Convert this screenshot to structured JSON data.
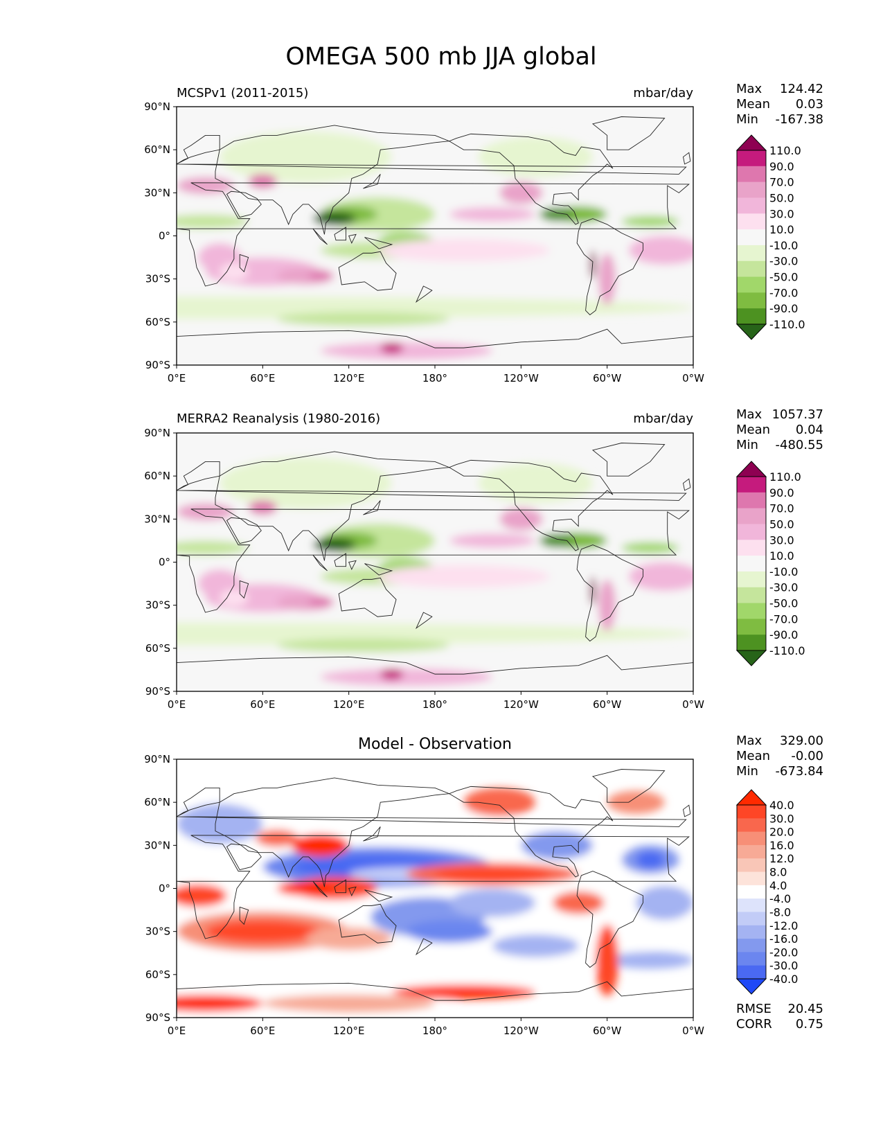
{
  "figure": {
    "title": "OMEGA 500 mb JJA global"
  },
  "chart_data": [
    {
      "type": "heatmap",
      "title_left": "MCSPv1 (2011-2015)",
      "title_right": "mbar/day",
      "stats": {
        "max_label": "Max",
        "max_value": "124.42",
        "mean_label": "Mean",
        "mean_value": "0.03",
        "min_label": "Min",
        "min_value": "-167.38"
      },
      "colorbar": {
        "levels": [
          "110.0",
          "90.0",
          "70.0",
          "50.0",
          "30.0",
          "10.0",
          "-10.0",
          "-30.0",
          "-50.0",
          "-70.0",
          "-90.0",
          "-110.0"
        ],
        "colors": [
          "#8e0152",
          "#c51b7d",
          "#de77ae",
          "#e9a3c9",
          "#f1b6da",
          "#fde0ef",
          "#f7f7f7",
          "#e6f5d0",
          "#c5e59c",
          "#a1d76a",
          "#7fbc41",
          "#4d9221",
          "#276419"
        ]
      },
      "xticks": [
        "0°E",
        "60°E",
        "120°E",
        "180°",
        "120°W",
        "60°W",
        "0°W"
      ],
      "yticks": [
        "90°N",
        "60°N",
        "30°N",
        "0°",
        "30°S",
        "60°S",
        "90°S"
      ],
      "xlim": [
        0,
        360
      ],
      "ylim": [
        -90,
        90
      ]
    },
    {
      "type": "heatmap",
      "title_left": "MERRA2 Reanalysis (1980-2016)",
      "title_right": "mbar/day",
      "stats": {
        "max_label": "Max",
        "max_value": "1057.37",
        "mean_label": "Mean",
        "mean_value": "0.04",
        "min_label": "Min",
        "min_value": "-480.55"
      },
      "colorbar": {
        "levels": [
          "110.0",
          "90.0",
          "70.0",
          "50.0",
          "30.0",
          "10.0",
          "-10.0",
          "-30.0",
          "-50.0",
          "-70.0",
          "-90.0",
          "-110.0"
        ],
        "colors": [
          "#8e0152",
          "#c51b7d",
          "#de77ae",
          "#e9a3c9",
          "#f1b6da",
          "#fde0ef",
          "#f7f7f7",
          "#e6f5d0",
          "#c5e59c",
          "#a1d76a",
          "#7fbc41",
          "#4d9221",
          "#276419"
        ]
      },
      "xticks": [
        "0°E",
        "60°E",
        "120°E",
        "180°",
        "120°W",
        "60°W",
        "0°W"
      ],
      "yticks": [
        "90°N",
        "60°N",
        "30°N",
        "0°",
        "30°S",
        "60°S",
        "90°S"
      ],
      "xlim": [
        0,
        360
      ],
      "ylim": [
        -90,
        90
      ]
    },
    {
      "type": "heatmap",
      "title_center": "Model - Observation",
      "stats": {
        "max_label": "Max",
        "max_value": "329.00",
        "mean_label": "Mean",
        "mean_value": "-0.00",
        "min_label": "Min",
        "min_value": "-673.84"
      },
      "metrics": {
        "rmse_label": "RMSE",
        "rmse_value": "20.45",
        "corr_label": "CORR",
        "corr_value": "0.75"
      },
      "colorbar": {
        "levels": [
          "40.0",
          "30.0",
          "20.0",
          "16.0",
          "12.0",
          "8.0",
          "4.0",
          "-4.0",
          "-8.0",
          "-12.0",
          "-16.0",
          "-20.0",
          "-30.0",
          "-40.0"
        ],
        "colors": [
          "#ff2a00",
          "#fe4626",
          "#f9674d",
          "#f78f77",
          "#f7aa96",
          "#f9c6b7",
          "#fde3da",
          "#ffffff",
          "#dde3fb",
          "#c2ccf7",
          "#a4b3f2",
          "#8399ee",
          "#6b86ef",
          "#4a69f2",
          "#1f49f7"
        ]
      },
      "xticks": [
        "0°E",
        "60°E",
        "120°E",
        "180°",
        "120°W",
        "60°W",
        "0°W"
      ],
      "yticks": [
        "90°N",
        "60°N",
        "30°N",
        "0°",
        "30°S",
        "60°S",
        "90°S"
      ],
      "xlim": [
        0,
        360
      ],
      "ylim": [
        -90,
        90
      ]
    }
  ]
}
